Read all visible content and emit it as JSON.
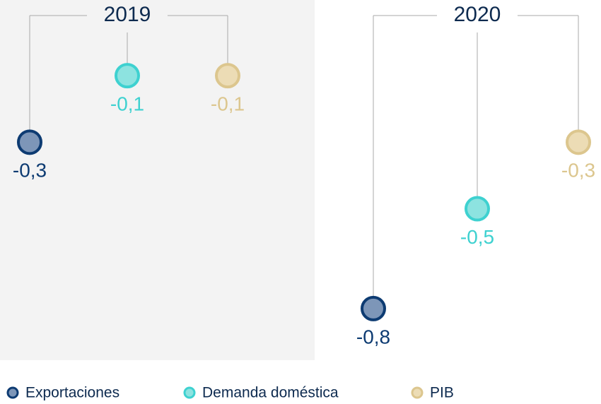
{
  "chart_data": {
    "type": "lollipop",
    "categories": [
      "2019",
      "2020"
    ],
    "series": [
      {
        "name": "Exportaciones",
        "color": "#0d3b72",
        "fill": "#7d96b8",
        "values": [
          -0.3,
          -0.8
        ],
        "value_labels": [
          "-0,3",
          "-0,8"
        ]
      },
      {
        "name": "Demanda doméstica",
        "color": "#3ed1d0",
        "fill": "#8de3e0",
        "values": [
          -0.1,
          -0.5
        ],
        "value_labels": [
          "-0,1",
          "-0,5"
        ]
      },
      {
        "name": "PIB",
        "color": "#dcc68e",
        "fill": "#ecdcb5",
        "values": [
          -0.1,
          -0.3
        ],
        "value_labels": [
          "-0,1",
          "-0,3"
        ]
      }
    ],
    "ylim": [
      -0.9,
      0
    ]
  }
}
